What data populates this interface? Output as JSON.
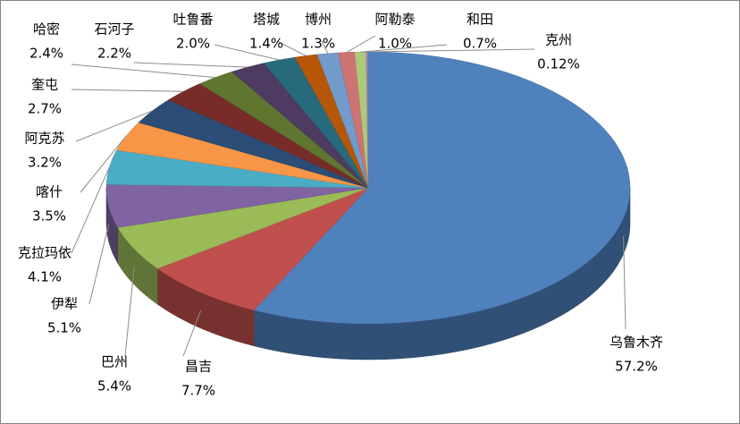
{
  "chart_data": {
    "type": "pie",
    "3d": true,
    "categories": [
      "乌鲁木齐",
      "昌吉",
      "巴州",
      "伊犁",
      "克拉玛依",
      "喀什",
      "阿克苏",
      "奎屯",
      "哈密",
      "石河子",
      "吐鲁番",
      "塔城",
      "博州",
      "阿勒泰",
      "和田",
      "克州"
    ],
    "values": [
      57.2,
      7.7,
      5.4,
      5.1,
      4.1,
      3.5,
      3.2,
      2.7,
      2.4,
      2.2,
      2.0,
      1.4,
      1.3,
      1.0,
      0.7,
      0.12
    ],
    "value_labels": [
      "57.2%",
      "7.7%",
      "5.4%",
      "5.1%",
      "4.1%",
      "3.5%",
      "3.2%",
      "2.7%",
      "2.4%",
      "2.2%",
      "2.0%",
      "1.4%",
      "1.3%",
      "1.0%",
      "0.7%",
      "0.12%"
    ],
    "colors": [
      "#4F81BD",
      "#C0504D",
      "#9BBB59",
      "#8064A2",
      "#4BACC6",
      "#F79646",
      "#2C4D75",
      "#772C2A",
      "#5F7530",
      "#4D3B62",
      "#276A7C",
      "#B65708",
      "#729ACA",
      "#CD7371",
      "#AFC97A",
      "#9983B5"
    ]
  }
}
